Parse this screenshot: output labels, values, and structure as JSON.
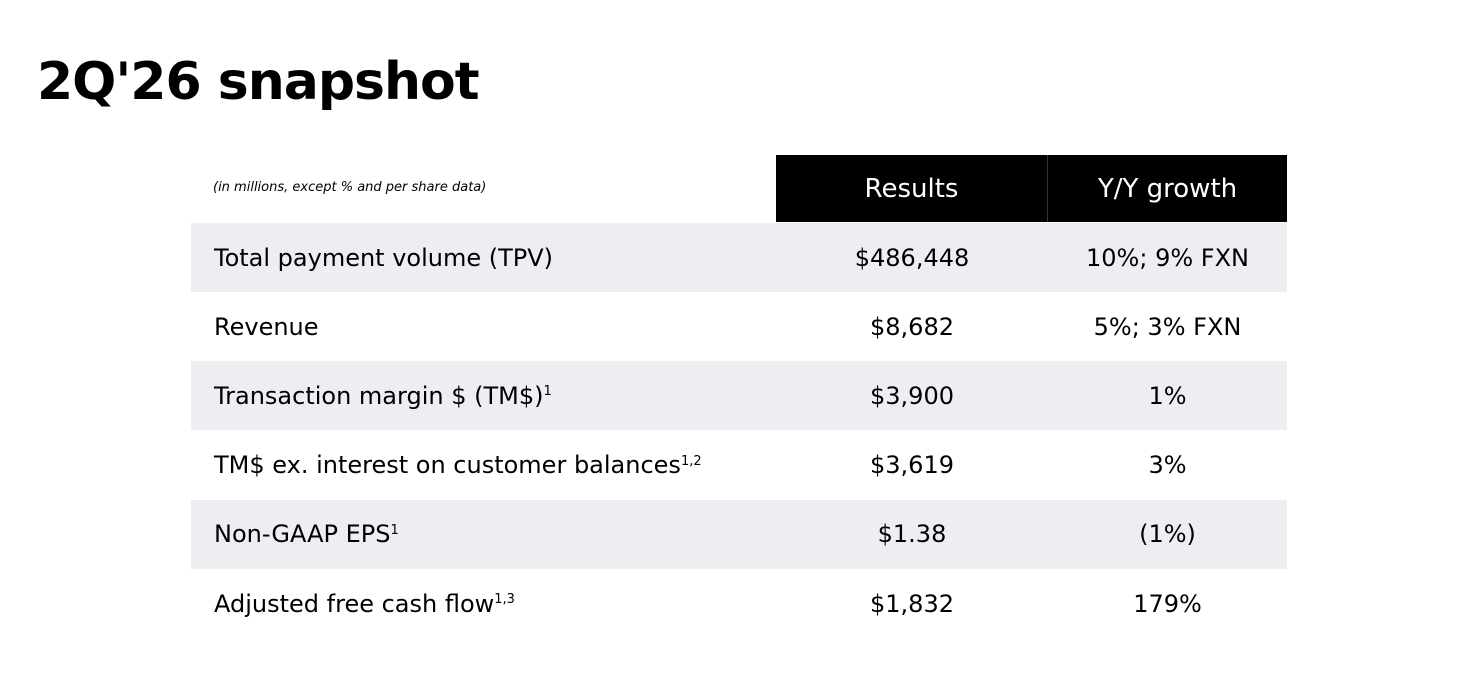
{
  "title": "2Q'26 snapshot",
  "note": "(in millions, except % and per share data)",
  "table": {
    "headers": [
      "Results",
      "Y/Y growth"
    ],
    "rows": [
      {
        "label": "Total payment volume (TPV)",
        "result": "$486,448",
        "growth": "10%; 9% FXN"
      },
      {
        "label": "Revenue",
        "result": "$8,682",
        "growth": "5%; 3% FXN"
      },
      {
        "label": "Transaction margin $ (TM$)",
        "sup": "1",
        "result": "$3,900",
        "growth": "1%"
      },
      {
        "label": "TM$ ex. interest on customer balances",
        "sup": "1,2",
        "result": "$3,619",
        "growth": "3%"
      },
      {
        "label": "Non-GAAP EPS",
        "sup": "1",
        "result": "$1.38",
        "growth": "(1%)"
      },
      {
        "label": "Adjusted free cash flow",
        "sup": "1,3",
        "result": "$1,832",
        "growth": "179%"
      }
    ]
  }
}
